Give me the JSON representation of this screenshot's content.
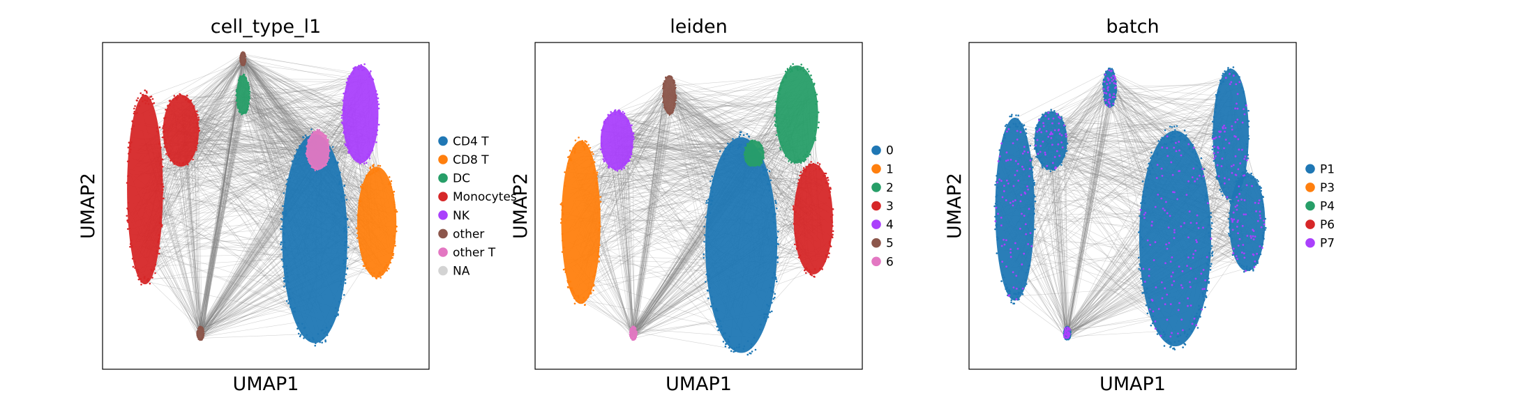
{
  "figure": {
    "x_label": "UMAP1",
    "y_label": "UMAP2"
  },
  "colors": {
    "edge": "#808080",
    "frame": "#000000"
  },
  "chart_data": [
    {
      "type": "scatter",
      "title": "cell_type_l1",
      "xlabel": "UMAP1",
      "ylabel": "UMAP2",
      "ticks": "none",
      "legend_position": "right",
      "legend": [
        {
          "label": "CD4 T",
          "color": "#1f77b4"
        },
        {
          "label": "CD8 T",
          "color": "#ff7f0e"
        },
        {
          "label": "DC",
          "color": "#279e68"
        },
        {
          "label": "Monocytes",
          "color": "#d62728"
        },
        {
          "label": "NK",
          "color": "#aa40fc"
        },
        {
          "label": "other",
          "color": "#8c564b"
        },
        {
          "label": "other T",
          "color": "#e377c2"
        },
        {
          "label": "NA",
          "color": "#d3d3d3"
        }
      ],
      "clusters": [
        {
          "label": "Monocytes",
          "x": 0.13,
          "y": 0.55,
          "rx": 0.055,
          "ry": 0.29,
          "color": "#d62728"
        },
        {
          "label": "Monocytes",
          "x": 0.24,
          "y": 0.73,
          "rx": 0.055,
          "ry": 0.11,
          "color": "#d62728"
        },
        {
          "label": "DC",
          "x": 0.43,
          "y": 0.84,
          "rx": 0.02,
          "ry": 0.06,
          "color": "#279e68"
        },
        {
          "label": "NK",
          "x": 0.79,
          "y": 0.78,
          "rx": 0.055,
          "ry": 0.15,
          "color": "#aa40fc"
        },
        {
          "label": "CD4 T",
          "x": 0.65,
          "y": 0.4,
          "rx": 0.1,
          "ry": 0.32,
          "color": "#1f77b4"
        },
        {
          "label": "other T",
          "x": 0.66,
          "y": 0.67,
          "rx": 0.035,
          "ry": 0.06,
          "color": "#e377c2"
        },
        {
          "label": "CD8 T",
          "x": 0.84,
          "y": 0.45,
          "rx": 0.06,
          "ry": 0.17,
          "color": "#ff7f0e"
        },
        {
          "label": "other",
          "x": 0.3,
          "y": 0.11,
          "rx": 0.01,
          "ry": 0.02,
          "color": "#8c564b"
        },
        {
          "label": "other",
          "x": 0.43,
          "y": 0.95,
          "rx": 0.008,
          "ry": 0.02,
          "color": "#8c564b"
        }
      ]
    },
    {
      "type": "scatter",
      "title": "leiden",
      "xlabel": "UMAP1",
      "ylabel": "UMAP2",
      "ticks": "none",
      "legend_position": "right",
      "legend": [
        {
          "label": "0",
          "color": "#1f77b4"
        },
        {
          "label": "1",
          "color": "#ff7f0e"
        },
        {
          "label": "2",
          "color": "#279e68"
        },
        {
          "label": "3",
          "color": "#d62728"
        },
        {
          "label": "4",
          "color": "#aa40fc"
        },
        {
          "label": "5",
          "color": "#8c564b"
        },
        {
          "label": "6",
          "color": "#e377c2"
        }
      ],
      "clusters": [
        {
          "label": "1",
          "x": 0.14,
          "y": 0.45,
          "rx": 0.06,
          "ry": 0.25,
          "color": "#ff7f0e"
        },
        {
          "label": "4",
          "x": 0.25,
          "y": 0.7,
          "rx": 0.05,
          "ry": 0.09,
          "color": "#aa40fc"
        },
        {
          "label": "5",
          "x": 0.41,
          "y": 0.84,
          "rx": 0.02,
          "ry": 0.06,
          "color": "#8c564b"
        },
        {
          "label": "0",
          "x": 0.63,
          "y": 0.38,
          "rx": 0.11,
          "ry": 0.33,
          "color": "#1f77b4"
        },
        {
          "label": "2",
          "x": 0.8,
          "y": 0.78,
          "rx": 0.065,
          "ry": 0.15,
          "color": "#279e68"
        },
        {
          "label": "2",
          "x": 0.67,
          "y": 0.66,
          "rx": 0.03,
          "ry": 0.04,
          "color": "#279e68"
        },
        {
          "label": "3",
          "x": 0.85,
          "y": 0.46,
          "rx": 0.06,
          "ry": 0.17,
          "color": "#d62728"
        },
        {
          "label": "6",
          "x": 0.3,
          "y": 0.11,
          "rx": 0.01,
          "ry": 0.02,
          "color": "#e377c2"
        }
      ]
    },
    {
      "type": "scatter",
      "title": "batch",
      "xlabel": "UMAP1",
      "ylabel": "UMAP2",
      "ticks": "none",
      "legend_position": "right",
      "legend": [
        {
          "label": "P1",
          "color": "#1f77b4"
        },
        {
          "label": "P3",
          "color": "#ff7f0e"
        },
        {
          "label": "P4",
          "color": "#279e68"
        },
        {
          "label": "P6",
          "color": "#d62728"
        },
        {
          "label": "P7",
          "color": "#aa40fc"
        }
      ],
      "clusters": [
        {
          "label": "P1",
          "x": 0.14,
          "y": 0.49,
          "rx": 0.06,
          "ry": 0.28,
          "color": "#1f77b4"
        },
        {
          "label": "P1",
          "x": 0.25,
          "y": 0.7,
          "rx": 0.05,
          "ry": 0.09,
          "color": "#1f77b4"
        },
        {
          "label": "P1",
          "x": 0.43,
          "y": 0.86,
          "rx": 0.02,
          "ry": 0.06,
          "color": "#1f77b4"
        },
        {
          "label": "P1",
          "x": 0.63,
          "y": 0.4,
          "rx": 0.11,
          "ry": 0.33,
          "color": "#1f77b4"
        },
        {
          "label": "P1",
          "x": 0.8,
          "y": 0.72,
          "rx": 0.055,
          "ry": 0.2,
          "color": "#1f77b4"
        },
        {
          "label": "P1",
          "x": 0.85,
          "y": 0.45,
          "rx": 0.055,
          "ry": 0.15,
          "color": "#1f77b4"
        },
        {
          "label": "P1",
          "x": 0.3,
          "y": 0.11,
          "rx": 0.01,
          "ry": 0.02,
          "color": "#1f77b4"
        }
      ],
      "overlay": {
        "label": "P7",
        "color": "#aa40fc"
      }
    }
  ]
}
